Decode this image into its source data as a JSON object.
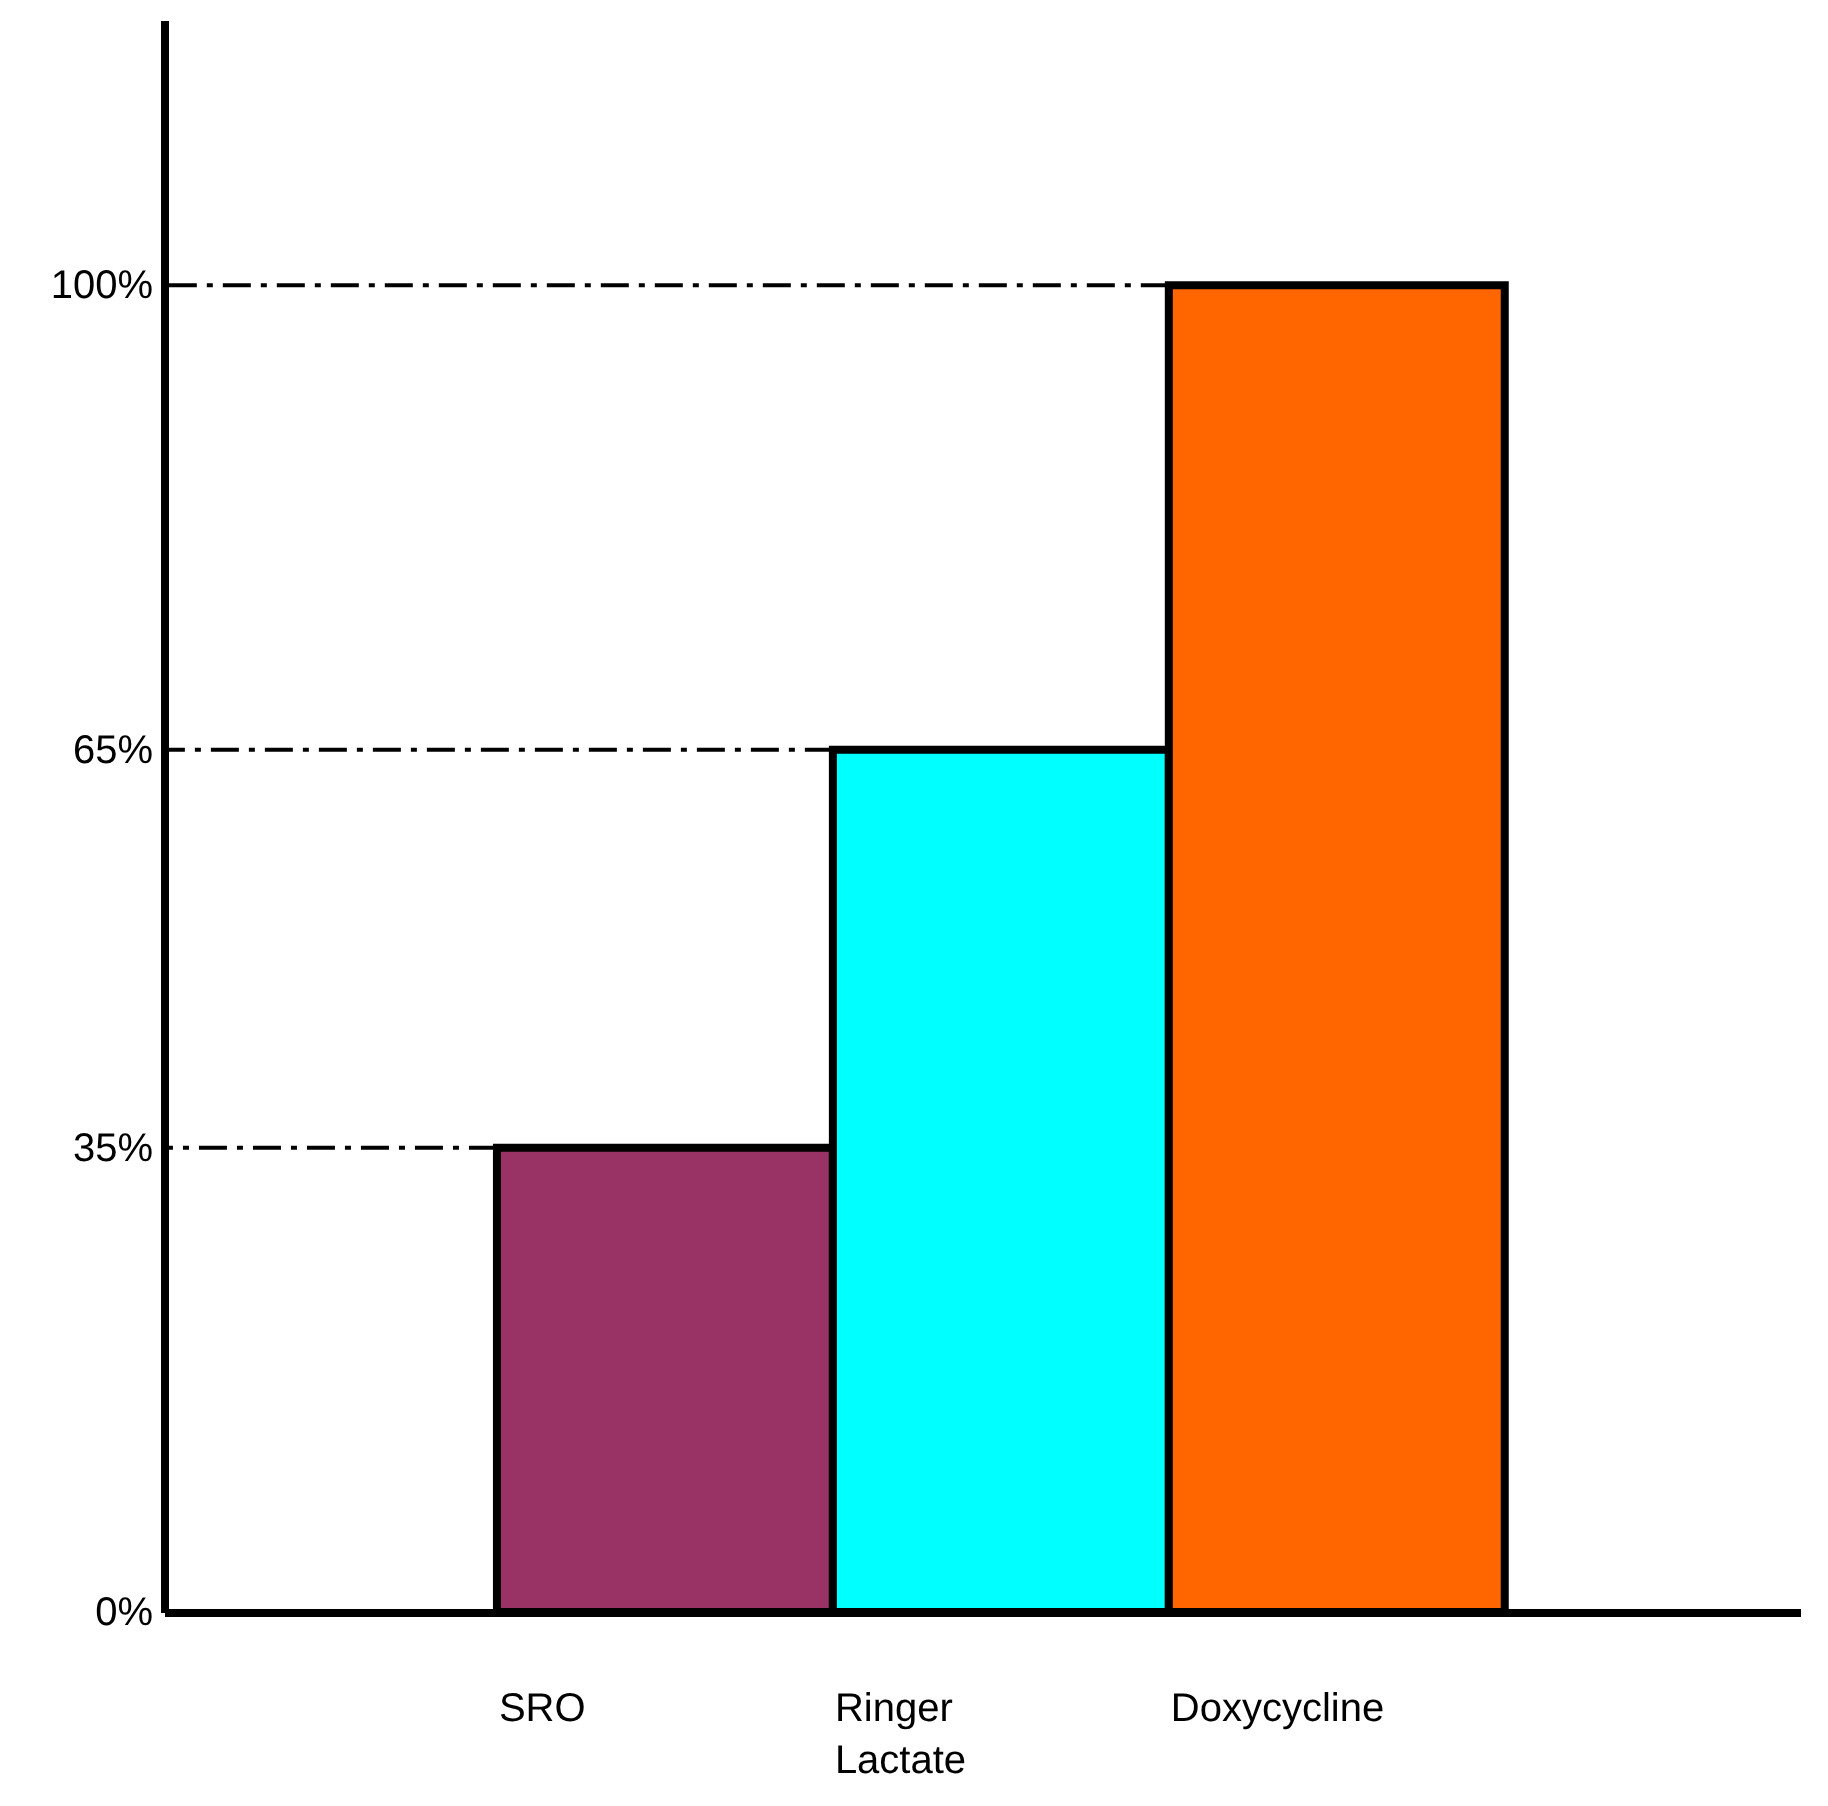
{
  "chart_data": {
    "type": "bar",
    "categories": [
      "SRO",
      "Ringer Lactate",
      "Doxycycline"
    ],
    "values": [
      35,
      65,
      100
    ],
    "colors": [
      "#993366",
      "#00ffff",
      "#ff6600"
    ],
    "ylim": [
      0,
      120
    ],
    "yticks": [
      {
        "value": 0,
        "label": "0%"
      },
      {
        "value": 35,
        "label": "35%"
      },
      {
        "value": 65,
        "label": "65%"
      },
      {
        "value": 100,
        "label": "100%"
      }
    ],
    "ref_lines": [
      {
        "axis": "y",
        "value": 35,
        "label": null,
        "line_style": "dashed"
      },
      {
        "axis": "y",
        "value": 65,
        "label": null,
        "line_style": "dashed"
      },
      {
        "axis": "y",
        "value": 100,
        "label": null,
        "line_style": "dashed"
      }
    ],
    "grid": false
  }
}
